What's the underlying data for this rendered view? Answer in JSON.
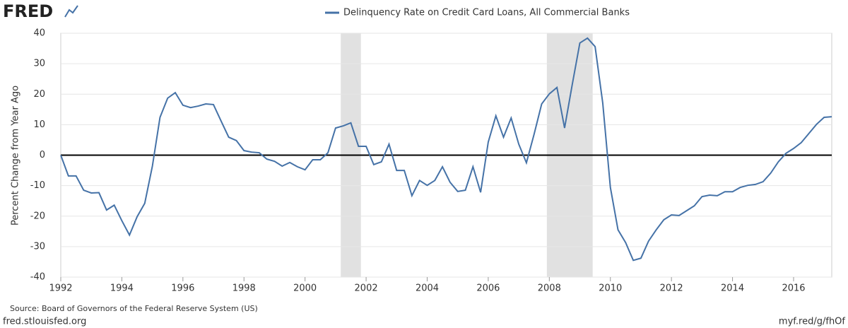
{
  "page": {
    "logo": "FRED",
    "footer": "fred.stlouisfed.org",
    "link": "myf.red/g/fhOf"
  },
  "chart_data": {
    "type": "line",
    "y_label": "Percent Change from Year Ago",
    "source": "Source: Board of Governors of the Federal Reserve System (US)",
    "x": [
      1992,
      1992.25,
      1992.5,
      1992.75,
      1993,
      1993.25,
      1993.5,
      1993.75,
      1994,
      1994.25,
      1994.5,
      1994.75,
      1995,
      1995.25,
      1995.5,
      1995.75,
      1996,
      1996.25,
      1996.5,
      1996.75,
      1997,
      1997.25,
      1997.5,
      1997.75,
      1998,
      1998.25,
      1998.5,
      1998.75,
      1999,
      1999.25,
      1999.5,
      1999.75,
      2000,
      2000.25,
      2000.5,
      2000.75,
      2001,
      2001.25,
      2001.5,
      2001.75,
      2002,
      2002.25,
      2002.5,
      2002.75,
      2003,
      2003.25,
      2003.5,
      2003.75,
      2004,
      2004.25,
      2004.5,
      2004.75,
      2005,
      2005.25,
      2005.5,
      2005.75,
      2006,
      2006.25,
      2006.5,
      2006.75,
      2007,
      2007.25,
      2007.5,
      2007.75,
      2008,
      2008.25,
      2008.5,
      2008.75,
      2009,
      2009.25,
      2009.5,
      2009.75,
      2010,
      2010.25,
      2010.5,
      2010.75,
      2011,
      2011.25,
      2011.5,
      2011.75,
      2012,
      2012.25,
      2012.5,
      2012.75,
      2013,
      2013.25,
      2013.5,
      2013.75,
      2014,
      2014.25,
      2014.5,
      2014.75,
      2015,
      2015.25,
      2015.5,
      2015.75,
      2016,
      2016.25,
      2016.5,
      2016.75,
      2017,
      2017.25
    ],
    "series": [
      {
        "name": "Delinquency Rate on Credit Card Loans, All Commercial Banks",
        "color": "#4572a7",
        "values": [
          0,
          -6.8,
          -6.8,
          -11.5,
          -12.4,
          -12.3,
          -18,
          -16.4,
          -21.5,
          -26.2,
          -20.2,
          -15.8,
          -3.6,
          12.4,
          18.7,
          20.5,
          16.4,
          15.6,
          16.1,
          16.8,
          16.6,
          11.2,
          5.9,
          4.8,
          1.5,
          1.0,
          0.8,
          -1.3,
          -2.0,
          -3.6,
          -2.4,
          -3.8,
          -4.8,
          -1.5,
          -1.5,
          0.8,
          8.9,
          9.6,
          10.6,
          2.9,
          2.9,
          -3.1,
          -2.2,
          3.6,
          -5,
          -5,
          -13.3,
          -8.3,
          -9.9,
          -8.3,
          -3.8,
          -8.9,
          -11.9,
          -11.5,
          -3.8,
          -12.2,
          4.3,
          12.9,
          5.9,
          12.2,
          3.6,
          -2.5,
          6.8,
          16.8,
          20.1,
          22.2,
          8.9,
          23.1,
          36.8,
          38.4,
          35.6,
          17.1,
          -10.6,
          -24.5,
          -28.7,
          -34.5,
          -33.8,
          -28.2,
          -24.5,
          -21.2,
          -19.6,
          -19.8,
          -18.2,
          -16.6,
          -13.6,
          -13.1,
          -13.3,
          -12.0,
          -12.0,
          -10.6,
          -9.9,
          -9.6,
          -8.7,
          -5.9,
          -2.2,
          0.6,
          2.2,
          4.1,
          7.1,
          10.1,
          12.4,
          12.6
        ]
      }
    ],
    "recessions": [
      {
        "start": 2001.17,
        "end": 2001.83
      },
      {
        "start": 2007.92,
        "end": 2009.42
      }
    ],
    "xlim": [
      1992,
      2017.25
    ],
    "ylim": [
      -40,
      40
    ],
    "xticks": [
      1992,
      1994,
      1996,
      1998,
      2000,
      2002,
      2004,
      2006,
      2008,
      2010,
      2012,
      2014,
      2016
    ],
    "yticks": [
      -40,
      -30,
      -20,
      -10,
      0,
      10,
      20,
      30,
      40
    ],
    "grid": true,
    "zero_line": true,
    "legend": "top"
  }
}
